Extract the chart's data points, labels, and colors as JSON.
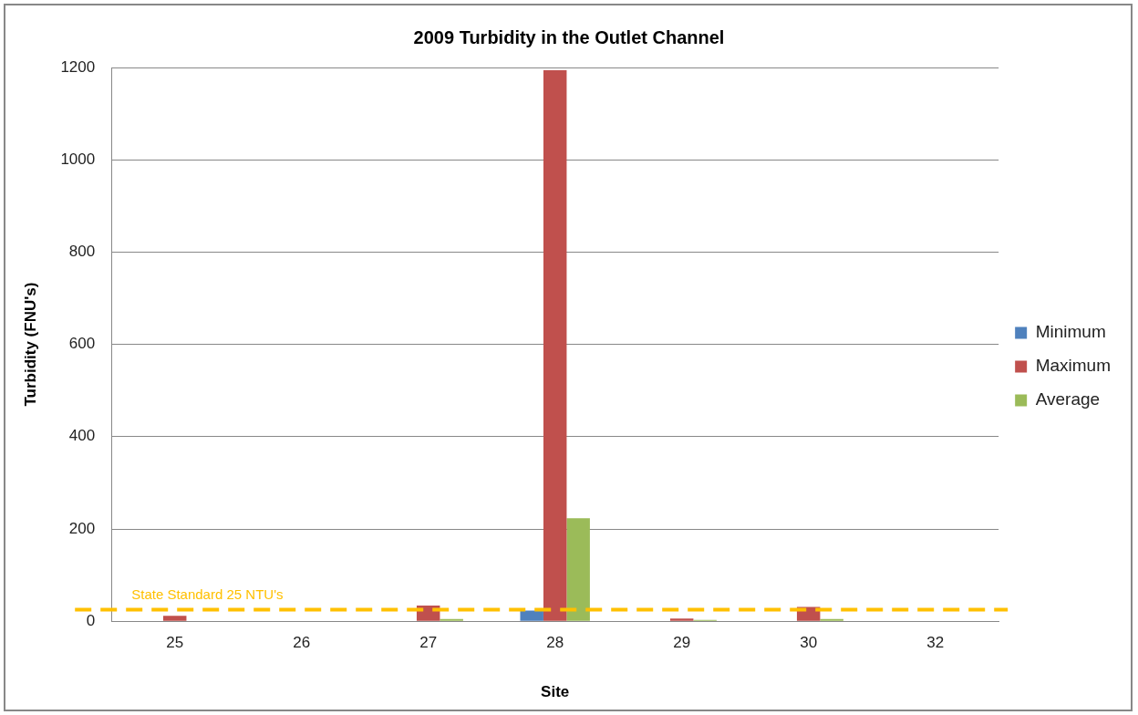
{
  "chart_data": {
    "type": "bar",
    "title": "2009 Turbidity in the Outlet Channel",
    "xlabel": "Site",
    "ylabel": "Turbidity (FNU's)",
    "categories": [
      "25",
      "26",
      "27",
      "28",
      "29",
      "30",
      "32"
    ],
    "series": [
      {
        "name": "Minimum",
        "color": "#4f81bd",
        "values": [
          0,
          0,
          0,
          23,
          0,
          0,
          0
        ]
      },
      {
        "name": "Maximum",
        "color": "#c0504d",
        "values": [
          12,
          0,
          34,
          1194,
          6,
          31,
          0
        ]
      },
      {
        "name": "Average",
        "color": "#9bbb59",
        "values": [
          0,
          0,
          5,
          223,
          3,
          5,
          0
        ]
      }
    ],
    "ylim": [
      0,
      1200
    ],
    "yticks": [
      0,
      200,
      400,
      600,
      800,
      1000,
      1200
    ],
    "grid": "y",
    "legend": "right",
    "ref_lines": [
      {
        "axis": "y",
        "value": 25,
        "label": "State Standard 25 NTU's",
        "color": "#ffc000",
        "line_style": "dashed"
      }
    ]
  }
}
